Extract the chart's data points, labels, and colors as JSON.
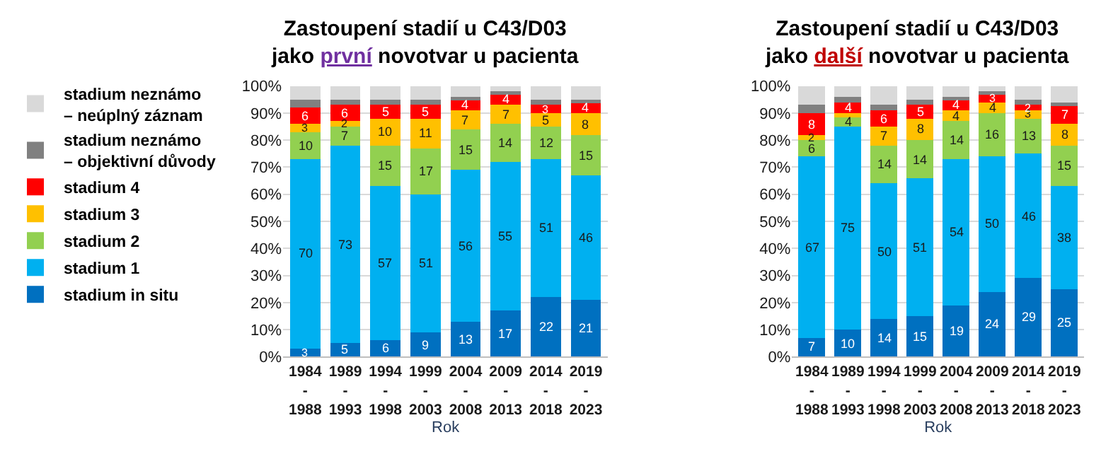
{
  "chart_data": [
    {
      "type": "bar",
      "stacked": true,
      "title": "Zastoupení stadií u C43/D03\njako první novotvar u pacienta",
      "xlabel": "Rok",
      "categories": [
        "1984\n-\n1988",
        "1989\n-\n1993",
        "1994\n-\n1998",
        "1999\n-\n2003",
        "2004\n-\n2008",
        "2009\n-\n2013",
        "2014\n-\n2018",
        "2019\n-\n2023"
      ],
      "ylim": [
        0,
        100
      ],
      "yticks": [
        {
          "value": 0,
          "label": "0%"
        },
        {
          "value": 10,
          "label": "10%"
        },
        {
          "value": 20,
          "label": "20%"
        },
        {
          "value": 30,
          "label": "30%"
        },
        {
          "value": 40,
          "label": "40%"
        },
        {
          "value": 50,
          "label": "50%"
        },
        {
          "value": 60,
          "label": "60%"
        },
        {
          "value": 70,
          "label": "70%"
        },
        {
          "value": 80,
          "label": "80%"
        },
        {
          "value": 90,
          "label": "90%"
        },
        {
          "value": 100,
          "label": "100%"
        }
      ],
      "grid": "y",
      "legend": "left",
      "series": [
        {
          "name": "stadium in situ",
          "color": "#0070c0",
          "values": [
            3,
            5,
            6,
            9,
            13,
            17,
            22,
            21
          ],
          "value_labels": [
            "3",
            "5",
            "6",
            "9",
            "13",
            "17",
            "22",
            "21"
          ]
        },
        {
          "name": "stadium 1",
          "color": "#00b0f0",
          "values": [
            70,
            73,
            57,
            51,
            56,
            55,
            51,
            46
          ],
          "value_labels": [
            "70",
            "73",
            "57",
            "51",
            "56",
            "55",
            "51",
            "46"
          ]
        },
        {
          "name": "stadium 2",
          "color": "#92d050",
          "values": [
            10,
            7,
            15,
            17,
            15,
            14,
            12,
            15
          ],
          "value_labels": [
            "10",
            "7",
            "15",
            "17",
            "15",
            "14",
            "12",
            "15"
          ]
        },
        {
          "name": "stadium 3",
          "color": "#ffc000",
          "values": [
            3,
            2,
            10,
            11,
            7,
            7,
            5,
            8
          ],
          "value_labels": [
            "3",
            "2",
            "10",
            "11",
            "7",
            "7",
            "5",
            "8"
          ]
        },
        {
          "name": "stadium 4",
          "color": "#ff0000",
          "values": [
            6,
            6,
            5,
            5,
            4,
            4,
            3,
            4
          ],
          "value_labels": [
            "6",
            "6",
            "5",
            "5",
            "4",
            "4",
            "3",
            "4"
          ]
        },
        {
          "name": "stadium neznámo\n– objektivní důvody",
          "color": "#808080",
          "values": [
            3,
            2,
            2,
            2,
            1,
            1,
            2,
            1
          ],
          "value_labels": [
            null,
            null,
            null,
            null,
            null,
            null,
            null,
            null
          ]
        },
        {
          "name": "stadium neznámo\n– neúplný záznam",
          "color": "#d9d9d9",
          "values": [
            5,
            5,
            5,
            5,
            4,
            2,
            5,
            5
          ],
          "value_labels": [
            null,
            null,
            null,
            null,
            null,
            null,
            null,
            null
          ]
        }
      ]
    },
    {
      "type": "bar",
      "stacked": true,
      "title": "Zastoupení stadií u C43/D03\njako další novotvar u pacienta",
      "xlabel": "Rok",
      "categories": [
        "1984\n-\n1988",
        "1989\n-\n1993",
        "1994\n-\n1998",
        "1999\n-\n2003",
        "2004\n-\n2008",
        "2009\n-\n2013",
        "2014\n-\n2018",
        "2019\n-\n2023"
      ],
      "ylim": [
        0,
        100
      ],
      "yticks": [
        {
          "value": 0,
          "label": "0%"
        },
        {
          "value": 10,
          "label": "10%"
        },
        {
          "value": 20,
          "label": "20%"
        },
        {
          "value": 30,
          "label": "30%"
        },
        {
          "value": 40,
          "label": "40%"
        },
        {
          "value": 50,
          "label": "50%"
        },
        {
          "value": 60,
          "label": "60%"
        },
        {
          "value": 70,
          "label": "70%"
        },
        {
          "value": 80,
          "label": "80%"
        },
        {
          "value": 90,
          "label": "90%"
        },
        {
          "value": 100,
          "label": "100%"
        }
      ],
      "grid": "y",
      "series": [
        {
          "color": "#0070c0",
          "values": [
            7,
            10,
            14,
            15,
            19,
            24,
            29,
            25
          ],
          "value_labels": [
            "7",
            "10",
            "14",
            "15",
            "19",
            "24",
            "29",
            "25"
          ]
        },
        {
          "color": "#00b0f0",
          "values": [
            67,
            75,
            50,
            51,
            54,
            50,
            46,
            38
          ],
          "value_labels": [
            "67",
            "75",
            "50",
            "51",
            "54",
            "50",
            "46",
            "38"
          ]
        },
        {
          "color": "#92d050",
          "values": [
            6,
            4,
            14,
            14,
            14,
            16,
            13,
            15
          ],
          "value_labels": [
            "6",
            "4",
            "14",
            "14",
            "14",
            "16",
            "13",
            "15"
          ]
        },
        {
          "color": "#ffc000",
          "values": [
            2,
            1,
            7,
            8,
            4,
            4,
            3,
            8
          ],
          "value_labels": [
            "2",
            null,
            "7",
            "8",
            "4",
            "4",
            "3",
            "8"
          ]
        },
        {
          "color": "#ff0000",
          "values": [
            8,
            4,
            6,
            5,
            4,
            3,
            2,
            7
          ],
          "value_labels": [
            "8",
            "4",
            "6",
            "5",
            "4",
            "3",
            "2",
            "7"
          ]
        },
        {
          "color": "#808080",
          "values": [
            3,
            2,
            2,
            2,
            1,
            1,
            2,
            1
          ],
          "value_labels": [
            null,
            null,
            null,
            null,
            null,
            null,
            null,
            null
          ]
        },
        {
          "color": "#d9d9d9",
          "values": [
            7,
            4,
            7,
            5,
            4,
            2,
            5,
            6
          ],
          "value_labels": [
            null,
            null,
            null,
            null,
            null,
            null,
            null,
            null
          ]
        }
      ]
    }
  ]
}
